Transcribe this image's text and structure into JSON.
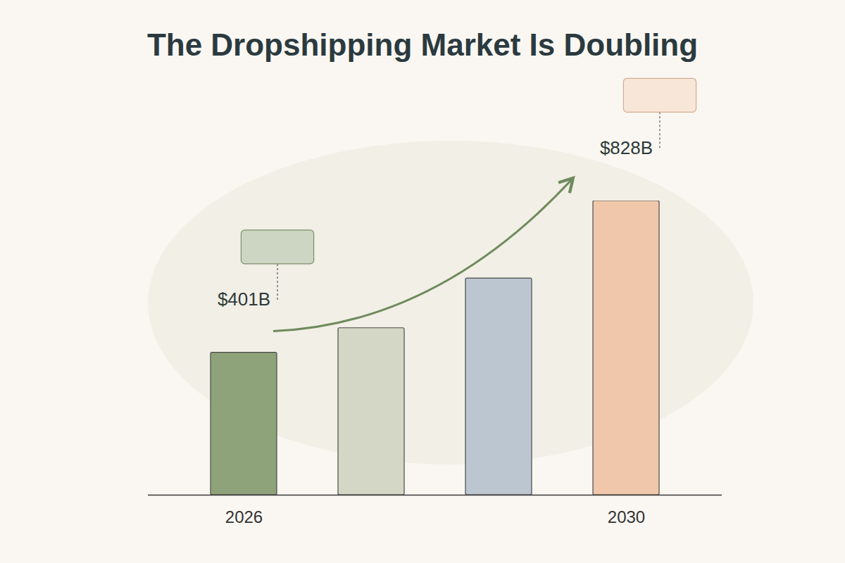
{
  "chart_data": {
    "type": "bar",
    "title": "The Dropshipping Market Is Doubling",
    "categories": [
      "2026",
      null,
      null,
      "2030"
    ],
    "values": [
      401,
      470,
      610,
      828
    ],
    "value_labels": [
      "$401B",
      null,
      null,
      "$828B"
    ],
    "colors": [
      "#8fa37a",
      "#d5d7c6",
      "#bcc6d1",
      "#f0c7aa"
    ],
    "data_labels": true,
    "tick_labels": "x",
    "grid": false
  }
}
